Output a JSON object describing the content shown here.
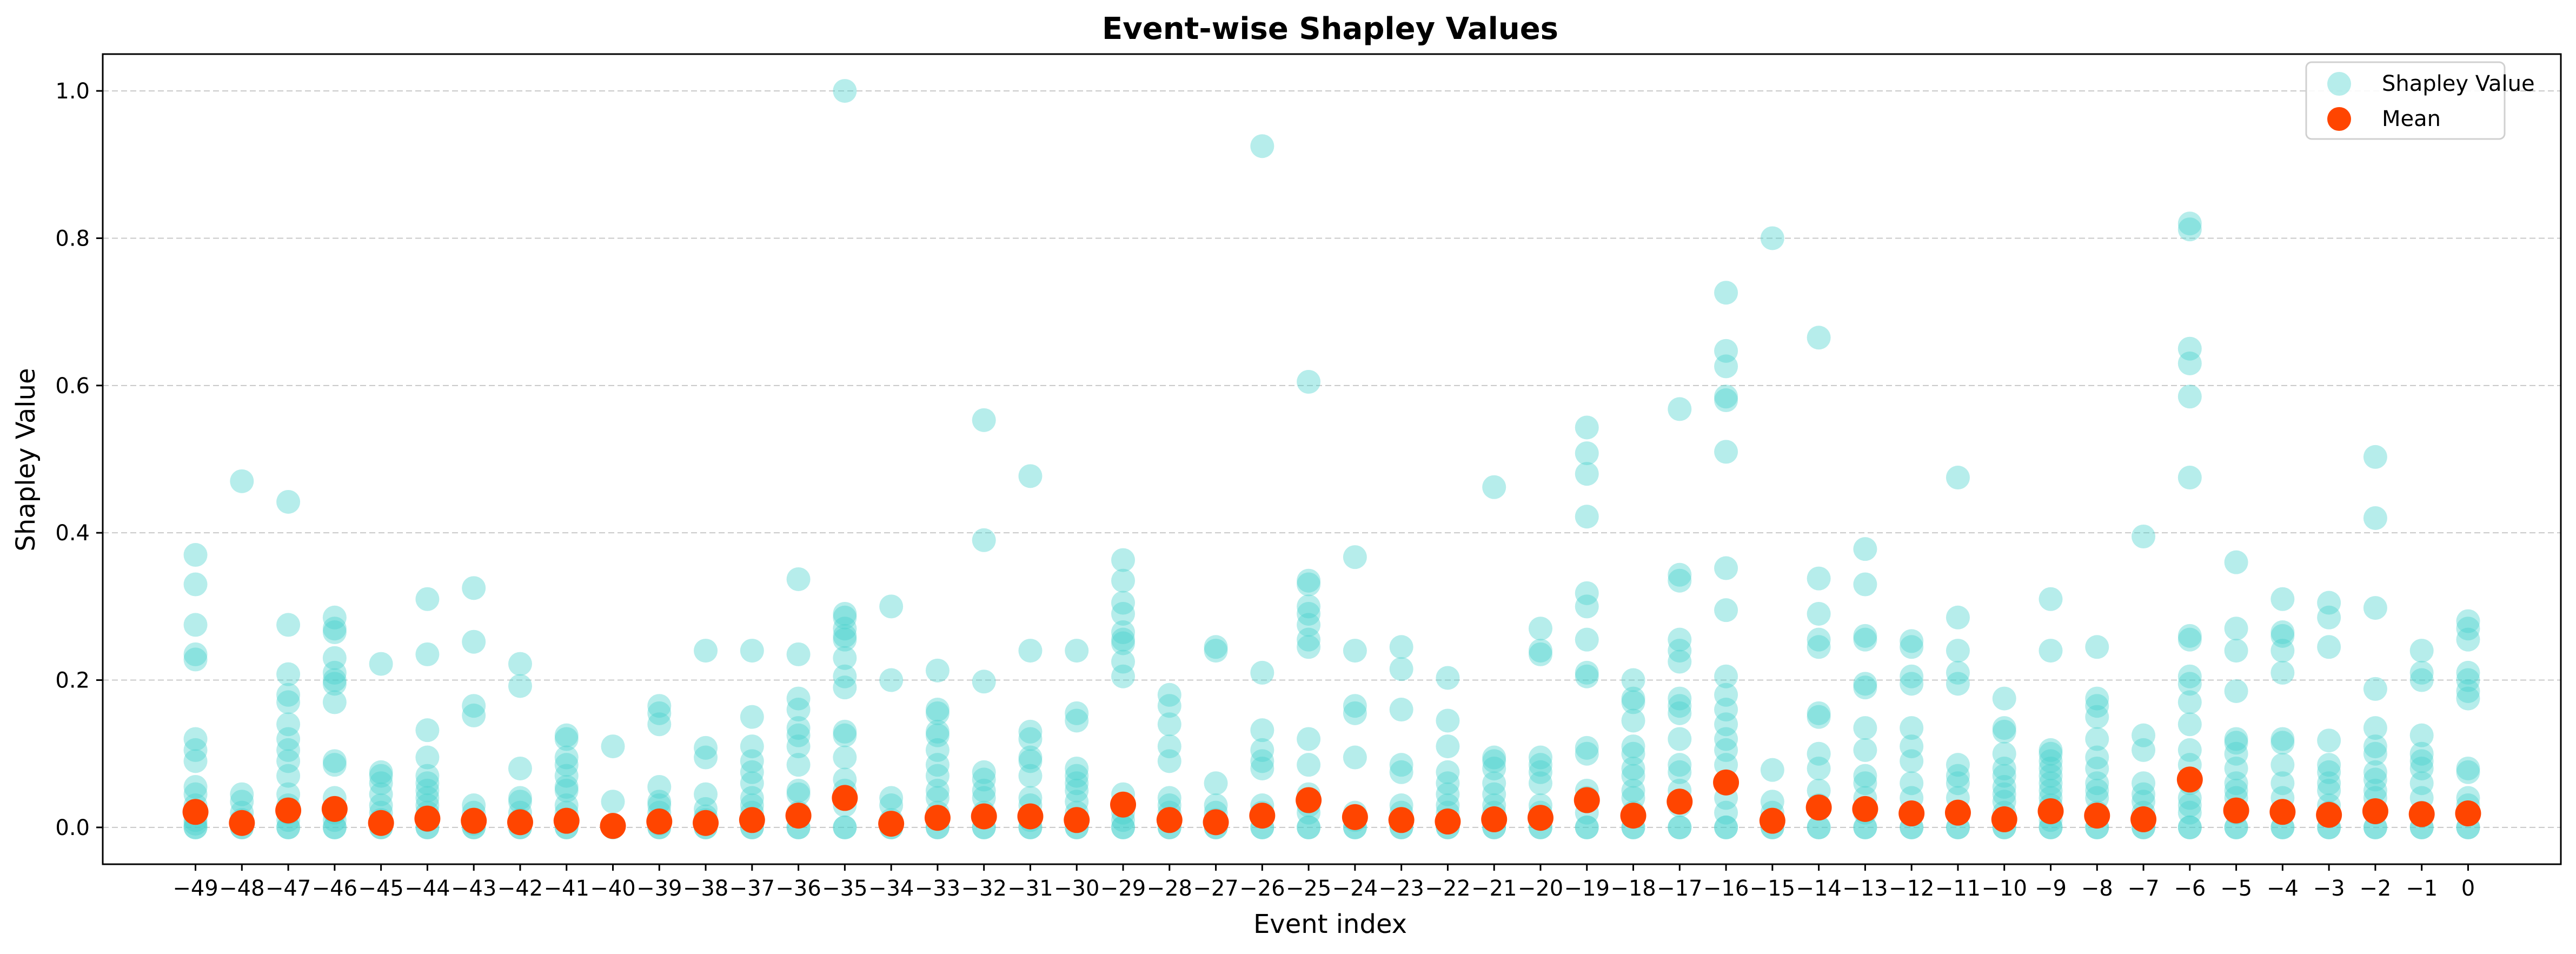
{
  "chart_data": {
    "type": "scatter",
    "title": "Event-wise Shapley Values",
    "xlabel": "Event index",
    "ylabel": "Shapley Value",
    "xlim": [
      -51,
      2
    ],
    "ylim": [
      -0.05,
      1.05
    ],
    "grid": "y-dashed",
    "legend_position": "top-right",
    "xticks": [
      -49,
      -48,
      -47,
      -46,
      -45,
      -44,
      -43,
      -42,
      -41,
      -40,
      -39,
      -38,
      -37,
      -36,
      -35,
      -34,
      -33,
      -32,
      -31,
      -30,
      -29,
      -28,
      -27,
      -26,
      -25,
      -24,
      -23,
      -22,
      -21,
      -20,
      -19,
      -18,
      -17,
      -16,
      -15,
      -14,
      -13,
      -12,
      -11,
      -10,
      -9,
      -8,
      -7,
      -6,
      -5,
      -4,
      -3,
      -2,
      -1,
      0
    ],
    "xtick_labels": [
      "−49",
      "−48",
      "−47",
      "−46",
      "−45",
      "−44",
      "−43",
      "−42",
      "−41",
      "−40",
      "−39",
      "−38",
      "−37",
      "−36",
      "−35",
      "−34",
      "−33",
      "−32",
      "−31",
      "−30",
      "−29",
      "−28",
      "−27",
      "−26",
      "−25",
      "−24",
      "−23",
      "−22",
      "−21",
      "−20",
      "−19",
      "−18",
      "−17",
      "−16",
      "−15",
      "−14",
      "−13",
      "−12",
      "−11",
      "−10",
      "−9",
      "−8",
      "−7",
      "−6",
      "−5",
      "−4",
      "−3",
      "−2",
      "−1",
      "0"
    ],
    "yticks": [
      0.0,
      0.2,
      0.4,
      0.6,
      0.8,
      1.0
    ],
    "ytick_labels": [
      "0.0",
      "0.2",
      "0.4",
      "0.6",
      "0.8",
      "1.0"
    ],
    "series": [
      {
        "name": "Shapley Value",
        "color": "#48d1cc",
        "opacity": 0.4,
        "values": {
          "-49": [
            0.37,
            0.33,
            0.275,
            0.235,
            0.228,
            0.12,
            0.105,
            0.09,
            0.055,
            0.045,
            0.03,
            0.02,
            0.01,
            0.005,
            0.0,
            0.0
          ],
          "-48": [
            0.47,
            0.045,
            0.035,
            0.02,
            0.01,
            0.005,
            0.0,
            0.0
          ],
          "-47": [
            0.442,
            0.275,
            0.208,
            0.18,
            0.17,
            0.14,
            0.12,
            0.105,
            0.09,
            0.07,
            0.045,
            0.03,
            0.02,
            0.01,
            0.0,
            0.0
          ],
          "-46": [
            0.285,
            0.27,
            0.265,
            0.23,
            0.21,
            0.2,
            0.195,
            0.17,
            0.09,
            0.085,
            0.04,
            0.02,
            0.01,
            0.0,
            0.0
          ],
          "-45": [
            0.222,
            0.075,
            0.07,
            0.06,
            0.045,
            0.03,
            0.02,
            0.01,
            0.005,
            0.0,
            0.0
          ],
          "-44": [
            0.31,
            0.235,
            0.132,
            0.095,
            0.07,
            0.06,
            0.05,
            0.04,
            0.03,
            0.02,
            0.01,
            0.0,
            0.0
          ],
          "-43": [
            0.325,
            0.252,
            0.165,
            0.152,
            0.03,
            0.02,
            0.01,
            0.005,
            0.0,
            0.0
          ],
          "-42": [
            0.222,
            0.192,
            0.08,
            0.04,
            0.035,
            0.02,
            0.01,
            0.0,
            0.0
          ],
          "-41": [
            0.125,
            0.12,
            0.095,
            0.085,
            0.07,
            0.055,
            0.05,
            0.03,
            0.02,
            0.01,
            0.0,
            0.0
          ],
          "-40": [
            0.11,
            0.035,
            0.0,
            0.0
          ],
          "-39": [
            0.165,
            0.155,
            0.14,
            0.055,
            0.035,
            0.03,
            0.02,
            0.01,
            0.005,
            0.0,
            0.0
          ],
          "-38": [
            0.24,
            0.108,
            0.095,
            0.045,
            0.025,
            0.015,
            0.01,
            0.0,
            0.0
          ],
          "-37": [
            0.24,
            0.15,
            0.11,
            0.09,
            0.075,
            0.06,
            0.04,
            0.03,
            0.02,
            0.01,
            0.0,
            0.0
          ],
          "-36": [
            0.337,
            0.235,
            0.175,
            0.16,
            0.135,
            0.125,
            0.11,
            0.085,
            0.05,
            0.045,
            0.02,
            0.0,
            0.0
          ],
          "-35": [
            1.0,
            0.29,
            0.285,
            0.27,
            0.26,
            0.255,
            0.23,
            0.205,
            0.19,
            0.13,
            0.125,
            0.095,
            0.065,
            0.05,
            0.03,
            0.0,
            0.0
          ],
          "-34": [
            0.3,
            0.2,
            0.04,
            0.03,
            0.01,
            0.0,
            0.0
          ],
          "-33": [
            0.213,
            0.16,
            0.155,
            0.13,
            0.125,
            0.105,
            0.085,
            0.07,
            0.05,
            0.04,
            0.02,
            0.0,
            0.0
          ],
          "-32": [
            0.553,
            0.39,
            0.198,
            0.075,
            0.065,
            0.05,
            0.04,
            0.02,
            0.0,
            0.0
          ],
          "-31": [
            0.477,
            0.24,
            0.13,
            0.12,
            0.095,
            0.09,
            0.07,
            0.04,
            0.03,
            0.01,
            0.0,
            0.0
          ],
          "-30": [
            0.24,
            0.155,
            0.145,
            0.08,
            0.07,
            0.06,
            0.05,
            0.035,
            0.02,
            0.01,
            0.0,
            0.0
          ],
          "-29": [
            0.363,
            0.335,
            0.305,
            0.29,
            0.265,
            0.255,
            0.25,
            0.225,
            0.205,
            0.045,
            0.03,
            0.02,
            0.01,
            0.0,
            0.0
          ],
          "-28": [
            0.18,
            0.165,
            0.14,
            0.11,
            0.09,
            0.04,
            0.03,
            0.02,
            0.0,
            0.0
          ],
          "-27": [
            0.245,
            0.24,
            0.06,
            0.03,
            0.02,
            0.01,
            0.0,
            0.0
          ],
          "-26": [
            0.925,
            0.21,
            0.132,
            0.105,
            0.09,
            0.08,
            0.03,
            0.02,
            0.0,
            0.0
          ],
          "-25": [
            0.605,
            0.335,
            0.33,
            0.3,
            0.29,
            0.275,
            0.255,
            0.245,
            0.12,
            0.085,
            0.045,
            0.03,
            0.02,
            0.0,
            0.0
          ],
          "-24": [
            0.367,
            0.24,
            0.165,
            0.155,
            0.095,
            0.02,
            0.01,
            0.0,
            0.0
          ],
          "-23": [
            0.245,
            0.215,
            0.16,
            0.085,
            0.075,
            0.03,
            0.02,
            0.01,
            0.0,
            0.0
          ],
          "-22": [
            0.203,
            0.145,
            0.11,
            0.075,
            0.06,
            0.045,
            0.03,
            0.02,
            0.01,
            0.0,
            0.0
          ],
          "-21": [
            0.462,
            0.095,
            0.09,
            0.08,
            0.06,
            0.045,
            0.03,
            0.02,
            0.0,
            0.0
          ],
          "-20": [
            0.27,
            0.24,
            0.235,
            0.095,
            0.085,
            0.075,
            0.06,
            0.03,
            0.02,
            0.0,
            0.0
          ],
          "-19": [
            0.543,
            0.508,
            0.48,
            0.422,
            0.318,
            0.3,
            0.255,
            0.21,
            0.205,
            0.108,
            0.1,
            0.05,
            0.04,
            0.02,
            0.0,
            0.0
          ],
          "-18": [
            0.2,
            0.175,
            0.17,
            0.145,
            0.11,
            0.1,
            0.08,
            0.07,
            0.05,
            0.04,
            0.02,
            0.0,
            0.0
          ],
          "-17": [
            0.568,
            0.343,
            0.335,
            0.255,
            0.24,
            0.225,
            0.175,
            0.165,
            0.155,
            0.12,
            0.085,
            0.075,
            0.05,
            0.03,
            0.0,
            0.0
          ],
          "-16": [
            0.726,
            0.647,
            0.626,
            0.585,
            0.58,
            0.51,
            0.352,
            0.295,
            0.205,
            0.18,
            0.16,
            0.14,
            0.12,
            0.105,
            0.085,
            0.06,
            0.04,
            0.02,
            0.0,
            0.0
          ],
          "-15": [
            0.8,
            0.078,
            0.035,
            0.02,
            0.01,
            0.0,
            0.0
          ],
          "-14": [
            0.665,
            0.338,
            0.29,
            0.255,
            0.245,
            0.155,
            0.15,
            0.1,
            0.08,
            0.05,
            0.03,
            0.0,
            0.0
          ],
          "-13": [
            0.378,
            0.33,
            0.26,
            0.255,
            0.195,
            0.19,
            0.135,
            0.105,
            0.07,
            0.06,
            0.04,
            0.02,
            0.0,
            0.0
          ],
          "-12": [
            0.253,
            0.245,
            0.205,
            0.195,
            0.135,
            0.11,
            0.09,
            0.06,
            0.04,
            0.02,
            0.0,
            0.0
          ],
          "-11": [
            0.475,
            0.285,
            0.24,
            0.21,
            0.195,
            0.085,
            0.07,
            0.06,
            0.04,
            0.02,
            0.0,
            0.0
          ],
          "-10": [
            0.175,
            0.135,
            0.13,
            0.1,
            0.08,
            0.07,
            0.055,
            0.045,
            0.035,
            0.02,
            0.01,
            0.0,
            0.0
          ],
          "-9": [
            0.31,
            0.24,
            0.105,
            0.1,
            0.09,
            0.08,
            0.07,
            0.06,
            0.05,
            0.04,
            0.03,
            0.02,
            0.01,
            0.0,
            0.0
          ],
          "-8": [
            0.245,
            0.175,
            0.165,
            0.15,
            0.12,
            0.095,
            0.08,
            0.06,
            0.05,
            0.04,
            0.02,
            0.0,
            0.0
          ],
          "-7": [
            0.395,
            0.125,
            0.105,
            0.06,
            0.045,
            0.035,
            0.02,
            0.01,
            0.0,
            0.0
          ],
          "-6": [
            0.82,
            0.812,
            0.65,
            0.63,
            0.585,
            0.475,
            0.26,
            0.255,
            0.205,
            0.195,
            0.17,
            0.14,
            0.105,
            0.085,
            0.06,
            0.04,
            0.03,
            0.02,
            0.0,
            0.0
          ],
          "-5": [
            0.36,
            0.27,
            0.24,
            0.185,
            0.12,
            0.115,
            0.1,
            0.08,
            0.06,
            0.05,
            0.04,
            0.02,
            0.0,
            0.0
          ],
          "-4": [
            0.31,
            0.265,
            0.26,
            0.24,
            0.21,
            0.12,
            0.115,
            0.085,
            0.06,
            0.04,
            0.02,
            0.0,
            0.0
          ],
          "-3": [
            0.305,
            0.285,
            0.245,
            0.118,
            0.085,
            0.075,
            0.06,
            0.05,
            0.03,
            0.02,
            0.0,
            0.0
          ],
          "-2": [
            0.503,
            0.42,
            0.298,
            0.188,
            0.135,
            0.11,
            0.1,
            0.075,
            0.065,
            0.05,
            0.04,
            0.02,
            0.0,
            0.0
          ],
          "-1": [
            0.24,
            0.21,
            0.2,
            0.125,
            0.1,
            0.09,
            0.08,
            0.06,
            0.04,
            0.02,
            0.0,
            0.0
          ],
          "0": [
            0.28,
            0.27,
            0.255,
            0.21,
            0.2,
            0.185,
            0.175,
            0.08,
            0.075,
            0.04,
            0.03,
            0.02,
            0.0,
            0.0
          ]
        }
      },
      {
        "name": "Mean",
        "color": "#ff4500",
        "values": {
          "-49": 0.021,
          "-48": 0.006,
          "-47": 0.023,
          "-46": 0.025,
          "-45": 0.006,
          "-44": 0.012,
          "-43": 0.009,
          "-42": 0.007,
          "-41": 0.009,
          "-40": 0.002,
          "-39": 0.008,
          "-38": 0.006,
          "-37": 0.01,
          "-36": 0.016,
          "-35": 0.04,
          "-34": 0.005,
          "-33": 0.013,
          "-32": 0.015,
          "-31": 0.015,
          "-30": 0.01,
          "-29": 0.031,
          "-28": 0.01,
          "-27": 0.007,
          "-26": 0.016,
          "-25": 0.037,
          "-24": 0.014,
          "-23": 0.01,
          "-22": 0.008,
          "-21": 0.011,
          "-20": 0.013,
          "-19": 0.037,
          "-18": 0.016,
          "-17": 0.035,
          "-16": 0.061,
          "-15": 0.009,
          "-14": 0.027,
          "-13": 0.025,
          "-12": 0.019,
          "-11": 0.02,
          "-10": 0.011,
          "-9": 0.022,
          "-8": 0.016,
          "-7": 0.011,
          "-6": 0.065,
          "-5": 0.023,
          "-4": 0.021,
          "-3": 0.017,
          "-2": 0.022,
          "-1": 0.018,
          "0": 0.019
        }
      }
    ],
    "legend": [
      {
        "label": "Shapley Value",
        "color": "#48d1cc",
        "opacity": 0.4
      },
      {
        "label": "Mean",
        "color": "#ff4500",
        "opacity": 1
      }
    ]
  }
}
